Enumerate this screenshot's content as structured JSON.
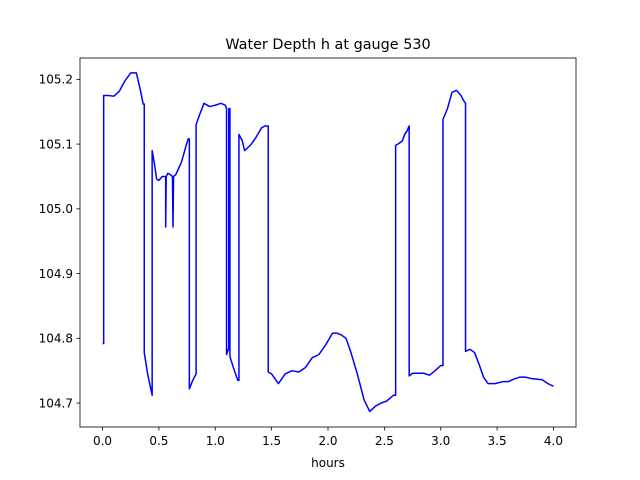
{
  "chart_data": {
    "type": "line",
    "title": "Water Depth h at gauge 530",
    "xlabel": "hours",
    "ylabel": "",
    "xlim": [
      -0.2,
      4.2
    ],
    "ylim": [
      104.663,
      105.233
    ],
    "xticks": [
      0.0,
      0.5,
      1.0,
      1.5,
      2.0,
      2.5,
      3.0,
      3.5,
      4.0
    ],
    "xtick_labels": [
      "0.0",
      "0.5",
      "1.0",
      "1.5",
      "2.0",
      "2.5",
      "3.0",
      "3.5",
      "4.0"
    ],
    "yticks": [
      104.7,
      104.8,
      104.9,
      105.0,
      105.1,
      105.2
    ],
    "ytick_labels": [
      "104.7",
      "104.8",
      "104.9",
      "105.0",
      "105.1",
      "105.2"
    ],
    "grid": false,
    "legend": "none",
    "color": "#0000ff",
    "series": [
      {
        "x": [
          0.0,
          0.01,
          0.01,
          0.05,
          0.1,
          0.15,
          0.2,
          0.25,
          0.3,
          0.34,
          0.36,
          0.37,
          0.37,
          0.4,
          0.44,
          0.44,
          0.46,
          0.48,
          0.5,
          0.53,
          0.56,
          0.56,
          0.565,
          0.58,
          0.6,
          0.62,
          0.625,
          0.63,
          0.65,
          0.7,
          0.74,
          0.76,
          0.77,
          0.77,
          0.8,
          0.83,
          0.83,
          0.86,
          0.9,
          0.95,
          1.0,
          1.05,
          1.09,
          1.1,
          1.1,
          1.12,
          1.12,
          1.13,
          1.13,
          1.16,
          1.2,
          1.21,
          1.21,
          1.24,
          1.26,
          1.28,
          1.32,
          1.36,
          1.41,
          1.44,
          1.46,
          1.47,
          1.47,
          1.5,
          1.56,
          1.62,
          1.68,
          1.74,
          1.8,
          1.86,
          1.92,
          1.98,
          2.04,
          2.08,
          2.12,
          2.16,
          2.2,
          2.26,
          2.32,
          2.37,
          2.42,
          2.47,
          2.52,
          2.58,
          2.6,
          2.6,
          2.62,
          2.66,
          2.68,
          2.7,
          2.72,
          2.72,
          2.75,
          2.8,
          2.85,
          2.9,
          2.95,
          3.0,
          3.02,
          3.02,
          3.06,
          3.1,
          3.14,
          3.18,
          3.2,
          3.22,
          3.22,
          3.26,
          3.3,
          3.34,
          3.38,
          3.42,
          3.48,
          3.55,
          3.6,
          3.65,
          3.7,
          3.75,
          3.8,
          3.85,
          3.9,
          3.95,
          4.0
        ],
        "values": [
          104.792,
          104.792,
          105.175,
          105.175,
          105.174,
          105.182,
          105.198,
          105.21,
          105.21,
          105.18,
          105.162,
          105.162,
          104.778,
          104.745,
          104.712,
          105.09,
          105.07,
          105.046,
          105.044,
          105.05,
          105.05,
          104.972,
          105.05,
          105.055,
          105.053,
          105.05,
          104.972,
          105.05,
          105.053,
          105.072,
          105.097,
          105.108,
          105.108,
          104.722,
          104.735,
          104.745,
          105.13,
          105.145,
          105.163,
          105.158,
          105.16,
          105.163,
          105.16,
          105.155,
          104.775,
          104.785,
          105.155,
          105.155,
          104.772,
          104.755,
          104.735,
          104.735,
          105.115,
          105.105,
          105.09,
          105.093,
          105.1,
          105.11,
          105.125,
          105.128,
          105.128,
          105.128,
          104.748,
          104.745,
          104.73,
          104.745,
          104.75,
          104.748,
          104.755,
          104.77,
          104.775,
          104.79,
          104.808,
          104.808,
          104.805,
          104.8,
          104.78,
          104.745,
          104.705,
          104.687,
          104.695,
          104.7,
          104.703,
          104.712,
          104.712,
          105.098,
          105.1,
          105.105,
          105.115,
          105.12,
          105.128,
          104.742,
          104.746,
          104.746,
          104.746,
          104.743,
          104.75,
          104.758,
          104.758,
          105.138,
          105.155,
          105.18,
          105.183,
          105.175,
          105.168,
          105.163,
          104.78,
          104.783,
          104.778,
          104.76,
          104.74,
          104.73,
          104.73,
          104.733,
          104.733,
          104.737,
          104.74,
          104.74,
          104.738,
          104.737,
          104.736,
          104.73,
          104.726
        ]
      }
    ]
  }
}
